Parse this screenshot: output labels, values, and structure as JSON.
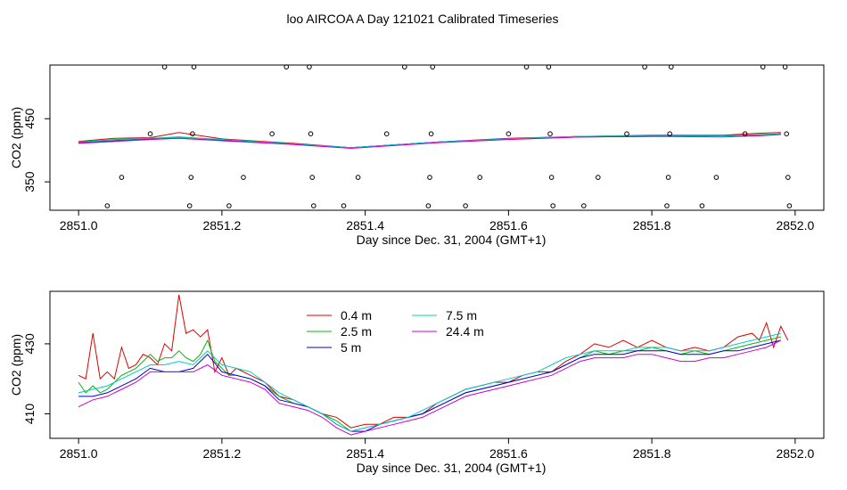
{
  "figure": {
    "title": "loo AIRCOA A  Day 121021  Calibrated Timeseries"
  },
  "chart_data": [
    {
      "type": "scatter+line",
      "xlabel": "Day since Dec. 31, 2004 (GMT+1)",
      "ylabel": "CO2 (ppm)",
      "xlim": [
        2850.96,
        2852.04
      ],
      "ylim": [
        305,
        535
      ],
      "x_ticks": [
        2851.0,
        2851.2,
        2851.4,
        2851.6,
        2851.8,
        2852.0
      ],
      "x_tick_labels": [
        "2851.0",
        "2851.2",
        "2851.4",
        "2851.6",
        "2851.8",
        "2852.0"
      ],
      "y_ticks": [
        350,
        450
      ],
      "y_tick_labels": [
        "350",
        "450"
      ],
      "grid": false,
      "calibration_points": [
        {
          "x": 2851.04,
          "y": 312
        },
        {
          "x": 2851.06,
          "y": 357
        },
        {
          "x": 2851.1,
          "y": 426
        },
        {
          "x": 2851.12,
          "y": 532
        },
        {
          "x": 2851.155,
          "y": 312
        },
        {
          "x": 2851.157,
          "y": 357
        },
        {
          "x": 2851.159,
          "y": 426
        },
        {
          "x": 2851.161,
          "y": 532
        },
        {
          "x": 2851.21,
          "y": 312
        },
        {
          "x": 2851.23,
          "y": 357
        },
        {
          "x": 2851.27,
          "y": 426
        },
        {
          "x": 2851.29,
          "y": 532
        },
        {
          "x": 2851.322,
          "y": 532
        },
        {
          "x": 2851.324,
          "y": 426
        },
        {
          "x": 2851.326,
          "y": 357
        },
        {
          "x": 2851.328,
          "y": 312
        },
        {
          "x": 2851.37,
          "y": 312
        },
        {
          "x": 2851.39,
          "y": 357
        },
        {
          "x": 2851.43,
          "y": 426
        },
        {
          "x": 2851.455,
          "y": 532
        },
        {
          "x": 2851.488,
          "y": 312
        },
        {
          "x": 2851.49,
          "y": 357
        },
        {
          "x": 2851.492,
          "y": 426
        },
        {
          "x": 2851.494,
          "y": 532
        },
        {
          "x": 2851.54,
          "y": 312
        },
        {
          "x": 2851.56,
          "y": 357
        },
        {
          "x": 2851.6,
          "y": 426
        },
        {
          "x": 2851.625,
          "y": 532
        },
        {
          "x": 2851.656,
          "y": 532
        },
        {
          "x": 2851.658,
          "y": 426
        },
        {
          "x": 2851.66,
          "y": 357
        },
        {
          "x": 2851.662,
          "y": 312
        },
        {
          "x": 2851.705,
          "y": 312
        },
        {
          "x": 2851.725,
          "y": 357
        },
        {
          "x": 2851.765,
          "y": 426
        },
        {
          "x": 2851.79,
          "y": 532
        },
        {
          "x": 2851.821,
          "y": 312
        },
        {
          "x": 2851.823,
          "y": 357
        },
        {
          "x": 2851.825,
          "y": 426
        },
        {
          "x": 2851.827,
          "y": 532
        },
        {
          "x": 2851.87,
          "y": 312
        },
        {
          "x": 2851.89,
          "y": 357
        },
        {
          "x": 2851.93,
          "y": 426
        },
        {
          "x": 2851.955,
          "y": 532
        },
        {
          "x": 2851.986,
          "y": 532
        },
        {
          "x": 2851.988,
          "y": 426
        },
        {
          "x": 2851.99,
          "y": 357
        },
        {
          "x": 2851.992,
          "y": 312
        }
      ],
      "series": [
        {
          "name": "0.4 m",
          "color": "#dd0000",
          "x": [
            2851.0,
            2851.05,
            2851.1,
            2851.14,
            2851.2,
            2851.3,
            2851.38,
            2851.5,
            2851.6,
            2851.7,
            2851.8,
            2851.9,
            2851.95,
            2851.98
          ],
          "y": [
            414,
            419,
            420,
            428,
            418,
            411,
            404,
            413,
            419,
            422,
            424,
            424,
            427,
            428
          ]
        },
        {
          "name": "2.5 m",
          "color": "#00bb00",
          "x": [
            2851.0,
            2851.05,
            2851.1,
            2851.14,
            2851.2,
            2851.3,
            2851.38,
            2851.5,
            2851.6,
            2851.7,
            2851.8,
            2851.9,
            2851.95,
            2851.98
          ],
          "y": [
            413,
            417,
            419,
            421,
            417,
            410,
            404,
            413,
            418,
            422,
            423,
            423,
            425,
            426
          ]
        },
        {
          "name": "5 m",
          "color": "#0000dd",
          "x": [
            2851.0,
            2851.05,
            2851.1,
            2851.14,
            2851.2,
            2851.3,
            2851.38,
            2851.5,
            2851.6,
            2851.7,
            2851.8,
            2851.9,
            2851.95,
            2851.98
          ],
          "y": [
            412,
            415,
            418,
            420,
            416,
            410,
            404,
            413,
            418,
            421,
            422,
            423,
            424,
            426
          ]
        },
        {
          "name": "7.5 m",
          "color": "#00cccc",
          "x": [
            2851.0,
            2851.05,
            2851.1,
            2851.14,
            2851.2,
            2851.3,
            2851.38,
            2851.5,
            2851.6,
            2851.7,
            2851.8,
            2851.9,
            2851.95,
            2851.98
          ],
          "y": [
            413,
            416,
            419,
            420,
            417,
            410,
            404,
            413,
            418,
            422,
            423,
            423,
            424,
            426
          ]
        },
        {
          "name": "24.4 m",
          "color": "#cc00cc",
          "x": [
            2851.0,
            2851.05,
            2851.1,
            2851.14,
            2851.2,
            2851.3,
            2851.38,
            2851.5,
            2851.6,
            2851.7,
            2851.8,
            2851.9,
            2851.95,
            2851.98
          ],
          "y": [
            411,
            414,
            417,
            419,
            415,
            409,
            403,
            412,
            417,
            421,
            422,
            421,
            423,
            425
          ]
        }
      ]
    },
    {
      "type": "line",
      "xlabel": "Day since Dec. 31, 2004 (GMT+1)",
      "ylabel": "CO2 (ppm)",
      "xlim": [
        2850.96,
        2852.04
      ],
      "ylim": [
        403,
        445
      ],
      "x_ticks": [
        2851.0,
        2851.2,
        2851.4,
        2851.6,
        2851.8,
        2852.0
      ],
      "x_tick_labels": [
        "2851.0",
        "2851.2",
        "2851.4",
        "2851.6",
        "2851.8",
        "2852.0"
      ],
      "y_ticks": [
        410,
        430
      ],
      "y_tick_labels": [
        "410",
        "430"
      ],
      "grid": false,
      "legend": "top-center",
      "series": [
        {
          "name": "0.4 m",
          "color": "#dd0000",
          "x": [
            2851.0,
            2851.01,
            2851.02,
            2851.03,
            2851.04,
            2851.05,
            2851.06,
            2851.07,
            2851.08,
            2851.09,
            2851.1,
            2851.11,
            2851.12,
            2851.13,
            2851.14,
            2851.15,
            2851.16,
            2851.17,
            2851.18,
            2851.19,
            2851.2,
            2851.21,
            2851.22,
            2851.24,
            2851.26,
            2851.28,
            2851.3,
            2851.32,
            2851.34,
            2851.36,
            2851.38,
            2851.4,
            2851.42,
            2851.44,
            2851.46,
            2851.48,
            2851.5,
            2851.52,
            2851.54,
            2851.56,
            2851.58,
            2851.6,
            2851.62,
            2851.64,
            2851.66,
            2851.68,
            2851.7,
            2851.72,
            2851.74,
            2851.76,
            2851.78,
            2851.8,
            2851.82,
            2851.84,
            2851.86,
            2851.88,
            2851.9,
            2851.92,
            2851.94,
            2851.95,
            2851.96,
            2851.97,
            2851.98,
            2851.99
          ],
          "y": [
            421,
            420,
            433,
            420,
            422,
            420,
            429,
            423,
            424,
            427,
            426,
            424,
            430,
            428,
            444,
            433,
            434,
            432,
            434,
            422,
            426,
            421,
            423,
            421,
            419,
            415,
            414,
            412,
            410,
            409,
            406,
            407,
            407,
            409,
            409,
            410,
            413,
            415,
            417,
            418,
            419,
            419,
            421,
            422,
            422,
            425,
            427,
            430,
            429,
            431,
            429,
            431,
            429,
            428,
            429,
            428,
            429,
            432,
            433,
            431,
            436,
            429,
            435,
            431
          ]
        },
        {
          "name": "2.5 m",
          "color": "#00bb00",
          "x": [
            2851.0,
            2851.01,
            2851.02,
            2851.03,
            2851.04,
            2851.05,
            2851.06,
            2851.07,
            2851.08,
            2851.09,
            2851.1,
            2851.11,
            2851.12,
            2851.13,
            2851.14,
            2851.15,
            2851.16,
            2851.17,
            2851.18,
            2851.19,
            2851.2,
            2851.21,
            2851.22,
            2851.24,
            2851.26,
            2851.28,
            2851.3,
            2851.32,
            2851.34,
            2851.36,
            2851.38,
            2851.4,
            2851.42,
            2851.44,
            2851.46,
            2851.48,
            2851.5,
            2851.52,
            2851.54,
            2851.56,
            2851.58,
            2851.6,
            2851.62,
            2851.64,
            2851.66,
            2851.68,
            2851.7,
            2851.72,
            2851.74,
            2851.76,
            2851.78,
            2851.8,
            2851.82,
            2851.84,
            2851.86,
            2851.88,
            2851.9,
            2851.92,
            2851.94,
            2851.96,
            2851.98
          ],
          "y": [
            419,
            416,
            418,
            416,
            417,
            419,
            421,
            422,
            423,
            425,
            427,
            425,
            426,
            426,
            428,
            426,
            425,
            427,
            431,
            425,
            423,
            421,
            421,
            420,
            418,
            415,
            413,
            412,
            410,
            408,
            405,
            406,
            407,
            408,
            409,
            410,
            412,
            414,
            416,
            417,
            418,
            419,
            420,
            421,
            422,
            424,
            426,
            428,
            427,
            428,
            428,
            429,
            428,
            427,
            428,
            427,
            428,
            429,
            430,
            431,
            432
          ]
        },
        {
          "name": "5 m",
          "color": "#0000dd",
          "x": [
            2851.0,
            2851.02,
            2851.04,
            2851.06,
            2851.08,
            2851.1,
            2851.12,
            2851.14,
            2851.16,
            2851.18,
            2851.2,
            2851.22,
            2851.24,
            2851.26,
            2851.28,
            2851.3,
            2851.32,
            2851.34,
            2851.36,
            2851.38,
            2851.4,
            2851.42,
            2851.44,
            2851.46,
            2851.48,
            2851.5,
            2851.52,
            2851.54,
            2851.56,
            2851.58,
            2851.6,
            2851.62,
            2851.64,
            2851.66,
            2851.68,
            2851.7,
            2851.72,
            2851.74,
            2851.76,
            2851.78,
            2851.8,
            2851.82,
            2851.84,
            2851.86,
            2851.88,
            2851.9,
            2851.92,
            2851.94,
            2851.96,
            2851.98
          ],
          "y": [
            415,
            415,
            416,
            418,
            420,
            423,
            422,
            422,
            423,
            427,
            422,
            421,
            420,
            418,
            414,
            413,
            412,
            410,
            407,
            405,
            405,
            407,
            408,
            409,
            410,
            412,
            414,
            416,
            417,
            418,
            419,
            420,
            421,
            422,
            424,
            426,
            427,
            427,
            427,
            428,
            428,
            428,
            427,
            427,
            427,
            428,
            428,
            429,
            430,
            431
          ]
        },
        {
          "name": "7.5 m",
          "color": "#00cccc",
          "x": [
            2851.0,
            2851.02,
            2851.04,
            2851.06,
            2851.08,
            2851.1,
            2851.12,
            2851.14,
            2851.16,
            2851.18,
            2851.2,
            2851.22,
            2851.24,
            2851.26,
            2851.28,
            2851.3,
            2851.32,
            2851.34,
            2851.36,
            2851.38,
            2851.4,
            2851.42,
            2851.44,
            2851.46,
            2851.48,
            2851.5,
            2851.52,
            2851.54,
            2851.56,
            2851.58,
            2851.6,
            2851.62,
            2851.64,
            2851.66,
            2851.68,
            2851.7,
            2851.72,
            2851.74,
            2851.76,
            2851.78,
            2851.8,
            2851.82,
            2851.84,
            2851.86,
            2851.88,
            2851.9,
            2851.92,
            2851.94,
            2851.96,
            2851.98
          ],
          "y": [
            416,
            417,
            418,
            420,
            422,
            424,
            424,
            425,
            424,
            428,
            424,
            423,
            422,
            419,
            416,
            414,
            412,
            410,
            407,
            405,
            406,
            407,
            408,
            409,
            411,
            413,
            415,
            417,
            418,
            419,
            420,
            421,
            422,
            424,
            426,
            427,
            428,
            428,
            428,
            429,
            429,
            429,
            428,
            428,
            428,
            429,
            430,
            431,
            432,
            433
          ]
        },
        {
          "name": "24.4 m",
          "color": "#cc00cc",
          "x": [
            2851.0,
            2851.02,
            2851.04,
            2851.06,
            2851.08,
            2851.1,
            2851.12,
            2851.14,
            2851.16,
            2851.18,
            2851.2,
            2851.22,
            2851.24,
            2851.26,
            2851.28,
            2851.3,
            2851.32,
            2851.34,
            2851.36,
            2851.38,
            2851.4,
            2851.42,
            2851.44,
            2851.46,
            2851.48,
            2851.5,
            2851.52,
            2851.54,
            2851.56,
            2851.58,
            2851.6,
            2851.62,
            2851.64,
            2851.66,
            2851.68,
            2851.7,
            2851.72,
            2851.74,
            2851.76,
            2851.78,
            2851.8,
            2851.82,
            2851.84,
            2851.86,
            2851.88,
            2851.9,
            2851.92,
            2851.94,
            2851.96,
            2851.98
          ],
          "y": [
            412,
            414,
            415,
            417,
            419,
            422,
            422,
            422,
            422,
            424,
            421,
            420,
            419,
            417,
            413,
            412,
            411,
            409,
            406,
            404,
            405,
            406,
            407,
            408,
            409,
            411,
            413,
            415,
            416,
            417,
            418,
            419,
            420,
            421,
            423,
            425,
            426,
            426,
            426,
            427,
            427,
            426,
            425,
            425,
            426,
            426,
            427,
            428,
            429,
            431
          ]
        }
      ]
    }
  ]
}
